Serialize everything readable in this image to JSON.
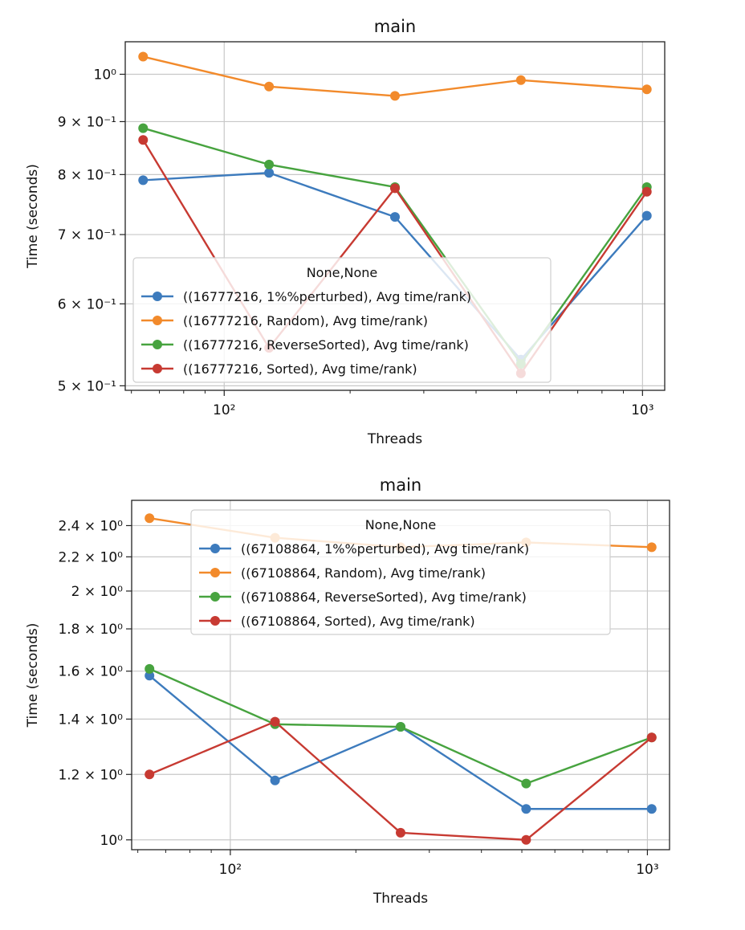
{
  "chart_data": [
    {
      "type": "line",
      "title": "main",
      "xlabel": "Threads",
      "ylabel": "Time (seconds)",
      "xscale": "log",
      "yscale": "log",
      "x": [
        64,
        128,
        256,
        512,
        1024
      ],
      "xlim": [
        58,
        1130
      ],
      "ylim": [
        0.495,
        1.075
      ],
      "xticks": [
        {
          "value": 100,
          "label": "10²"
        },
        {
          "value": 1000,
          "label": "10³"
        }
      ],
      "yticks": [
        {
          "value": 0.5,
          "label": "5 × 10⁻¹"
        },
        {
          "value": 0.6,
          "label": "6 × 10⁻¹"
        },
        {
          "value": 0.7,
          "label": "7 × 10⁻¹"
        },
        {
          "value": 0.8,
          "label": "8 × 10⁻¹"
        },
        {
          "value": 0.9,
          "label": "9 × 10⁻¹"
        },
        {
          "value": 1.0,
          "label": "10⁰"
        }
      ],
      "grid": true,
      "legend": {
        "title": "None,None",
        "placement": "lower-left"
      },
      "series": [
        {
          "name": "((16777216, 1%%perturbed), Avg time/rank)",
          "color": "#3d7bbd",
          "values": [
            0.79,
            0.803,
            0.728,
            0.53,
            0.73
          ]
        },
        {
          "name": "((16777216, Random), Avg time/rank)",
          "color": "#f28a2b",
          "values": [
            1.04,
            0.973,
            0.953,
            0.987,
            0.967
          ]
        },
        {
          "name": "((16777216, ReverseSorted), Avg time/rank)",
          "color": "#47a33f",
          "values": [
            0.887,
            0.818,
            0.778,
            0.525,
            0.778
          ]
        },
        {
          "name": "((16777216, Sorted), Avg time/rank)",
          "color": "#c73a32",
          "values": [
            0.864,
            0.544,
            0.776,
            0.514,
            0.77
          ]
        }
      ]
    },
    {
      "type": "line",
      "title": "main",
      "xlabel": "Threads",
      "ylabel": "Time (seconds)",
      "xscale": "log",
      "yscale": "log",
      "x": [
        64,
        128,
        256,
        512,
        1024
      ],
      "xlim": [
        58,
        1130
      ],
      "ylim": [
        0.973,
        2.575
      ],
      "xticks": [
        {
          "value": 100,
          "label": "10²"
        },
        {
          "value": 1000,
          "label": "10³"
        }
      ],
      "yticks": [
        {
          "value": 1.0,
          "label": "10⁰"
        },
        {
          "value": 1.2,
          "label": "1.2 × 10⁰"
        },
        {
          "value": 1.4,
          "label": "1.4 × 10⁰"
        },
        {
          "value": 1.6,
          "label": "1.6 × 10⁰"
        },
        {
          "value": 1.8,
          "label": "1.8 × 10⁰"
        },
        {
          "value": 2.0,
          "label": "2 × 10⁰"
        },
        {
          "value": 2.2,
          "label": "2.2 × 10⁰"
        },
        {
          "value": 2.4,
          "label": "2.4 × 10⁰"
        }
      ],
      "grid": true,
      "legend": {
        "title": "None,None",
        "placement": "top-center"
      },
      "series": [
        {
          "name": "((67108864, 1%%perturbed), Avg time/rank)",
          "color": "#3d7bbd",
          "values": [
            1.58,
            1.18,
            1.37,
            1.09,
            1.09
          ]
        },
        {
          "name": "((67108864, Random), Avg time/rank)",
          "color": "#f28a2b",
          "values": [
            2.45,
            2.32,
            2.26,
            2.29,
            2.26
          ]
        },
        {
          "name": "((67108864, ReverseSorted), Avg time/rank)",
          "color": "#47a33f",
          "values": [
            1.61,
            1.38,
            1.37,
            1.17,
            1.33
          ]
        },
        {
          "name": "((67108864, Sorted), Avg time/rank)",
          "color": "#c73a32",
          "values": [
            1.2,
            1.39,
            1.02,
            1.0,
            1.33
          ]
        }
      ]
    }
  ]
}
